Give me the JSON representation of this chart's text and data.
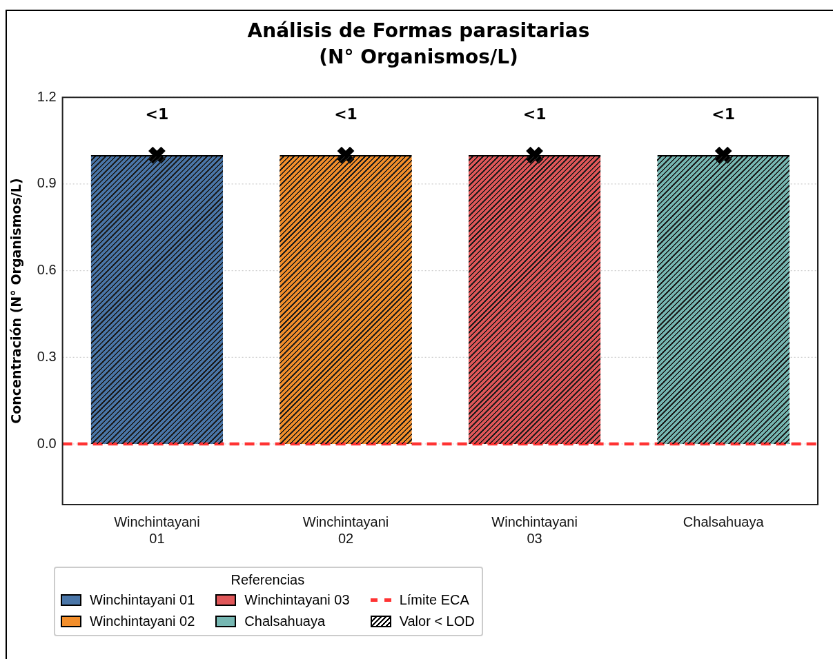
{
  "chart_data": {
    "type": "bar",
    "title": "Análisis de Formas parasitarias",
    "subtitle": "(N° Organismos/L)",
    "ylabel": "Concentración (N° Organismos/L)",
    "categories": [
      "Winchintayani 01",
      "Winchintayani 02",
      "Winchintayani 03",
      "Chalsahuaya"
    ],
    "values": [
      1,
      1,
      1,
      1
    ],
    "colors": [
      "#4a76a8",
      "#f28e2b",
      "#e05759",
      "#76b7b2"
    ],
    "value_labels": [
      "<1",
      "<1",
      "<1",
      "<1"
    ],
    "series": [
      {
        "type": "scatter",
        "x": [
          "Winchintayani 01",
          "Winchintayani 02",
          "Winchintayani 03",
          "Chalsahuaya"
        ],
        "values": [
          1,
          1,
          1,
          1
        ],
        "color": "#000000",
        "marker": "cross"
      }
    ],
    "ylim": [
      -0.21,
      1.2
    ],
    "yticks": [
      {
        "value": 0,
        "label": "0.0"
      },
      {
        "value": 0.3,
        "label": "0.3"
      },
      {
        "value": 0.6,
        "label": "0.6"
      },
      {
        "value": 0.9,
        "label": "0.9"
      },
      {
        "value": 1.2,
        "label": "1.2"
      }
    ],
    "grid": "y",
    "ref_lines": [
      {
        "axis": "y",
        "value": 0,
        "label": "Límite ECA",
        "color": "#ff3333",
        "line_style": "dashed"
      }
    ],
    "legend": "bottom left",
    "legend_title": "Referencias",
    "annotations": [
      "Valor < LOD"
    ]
  }
}
